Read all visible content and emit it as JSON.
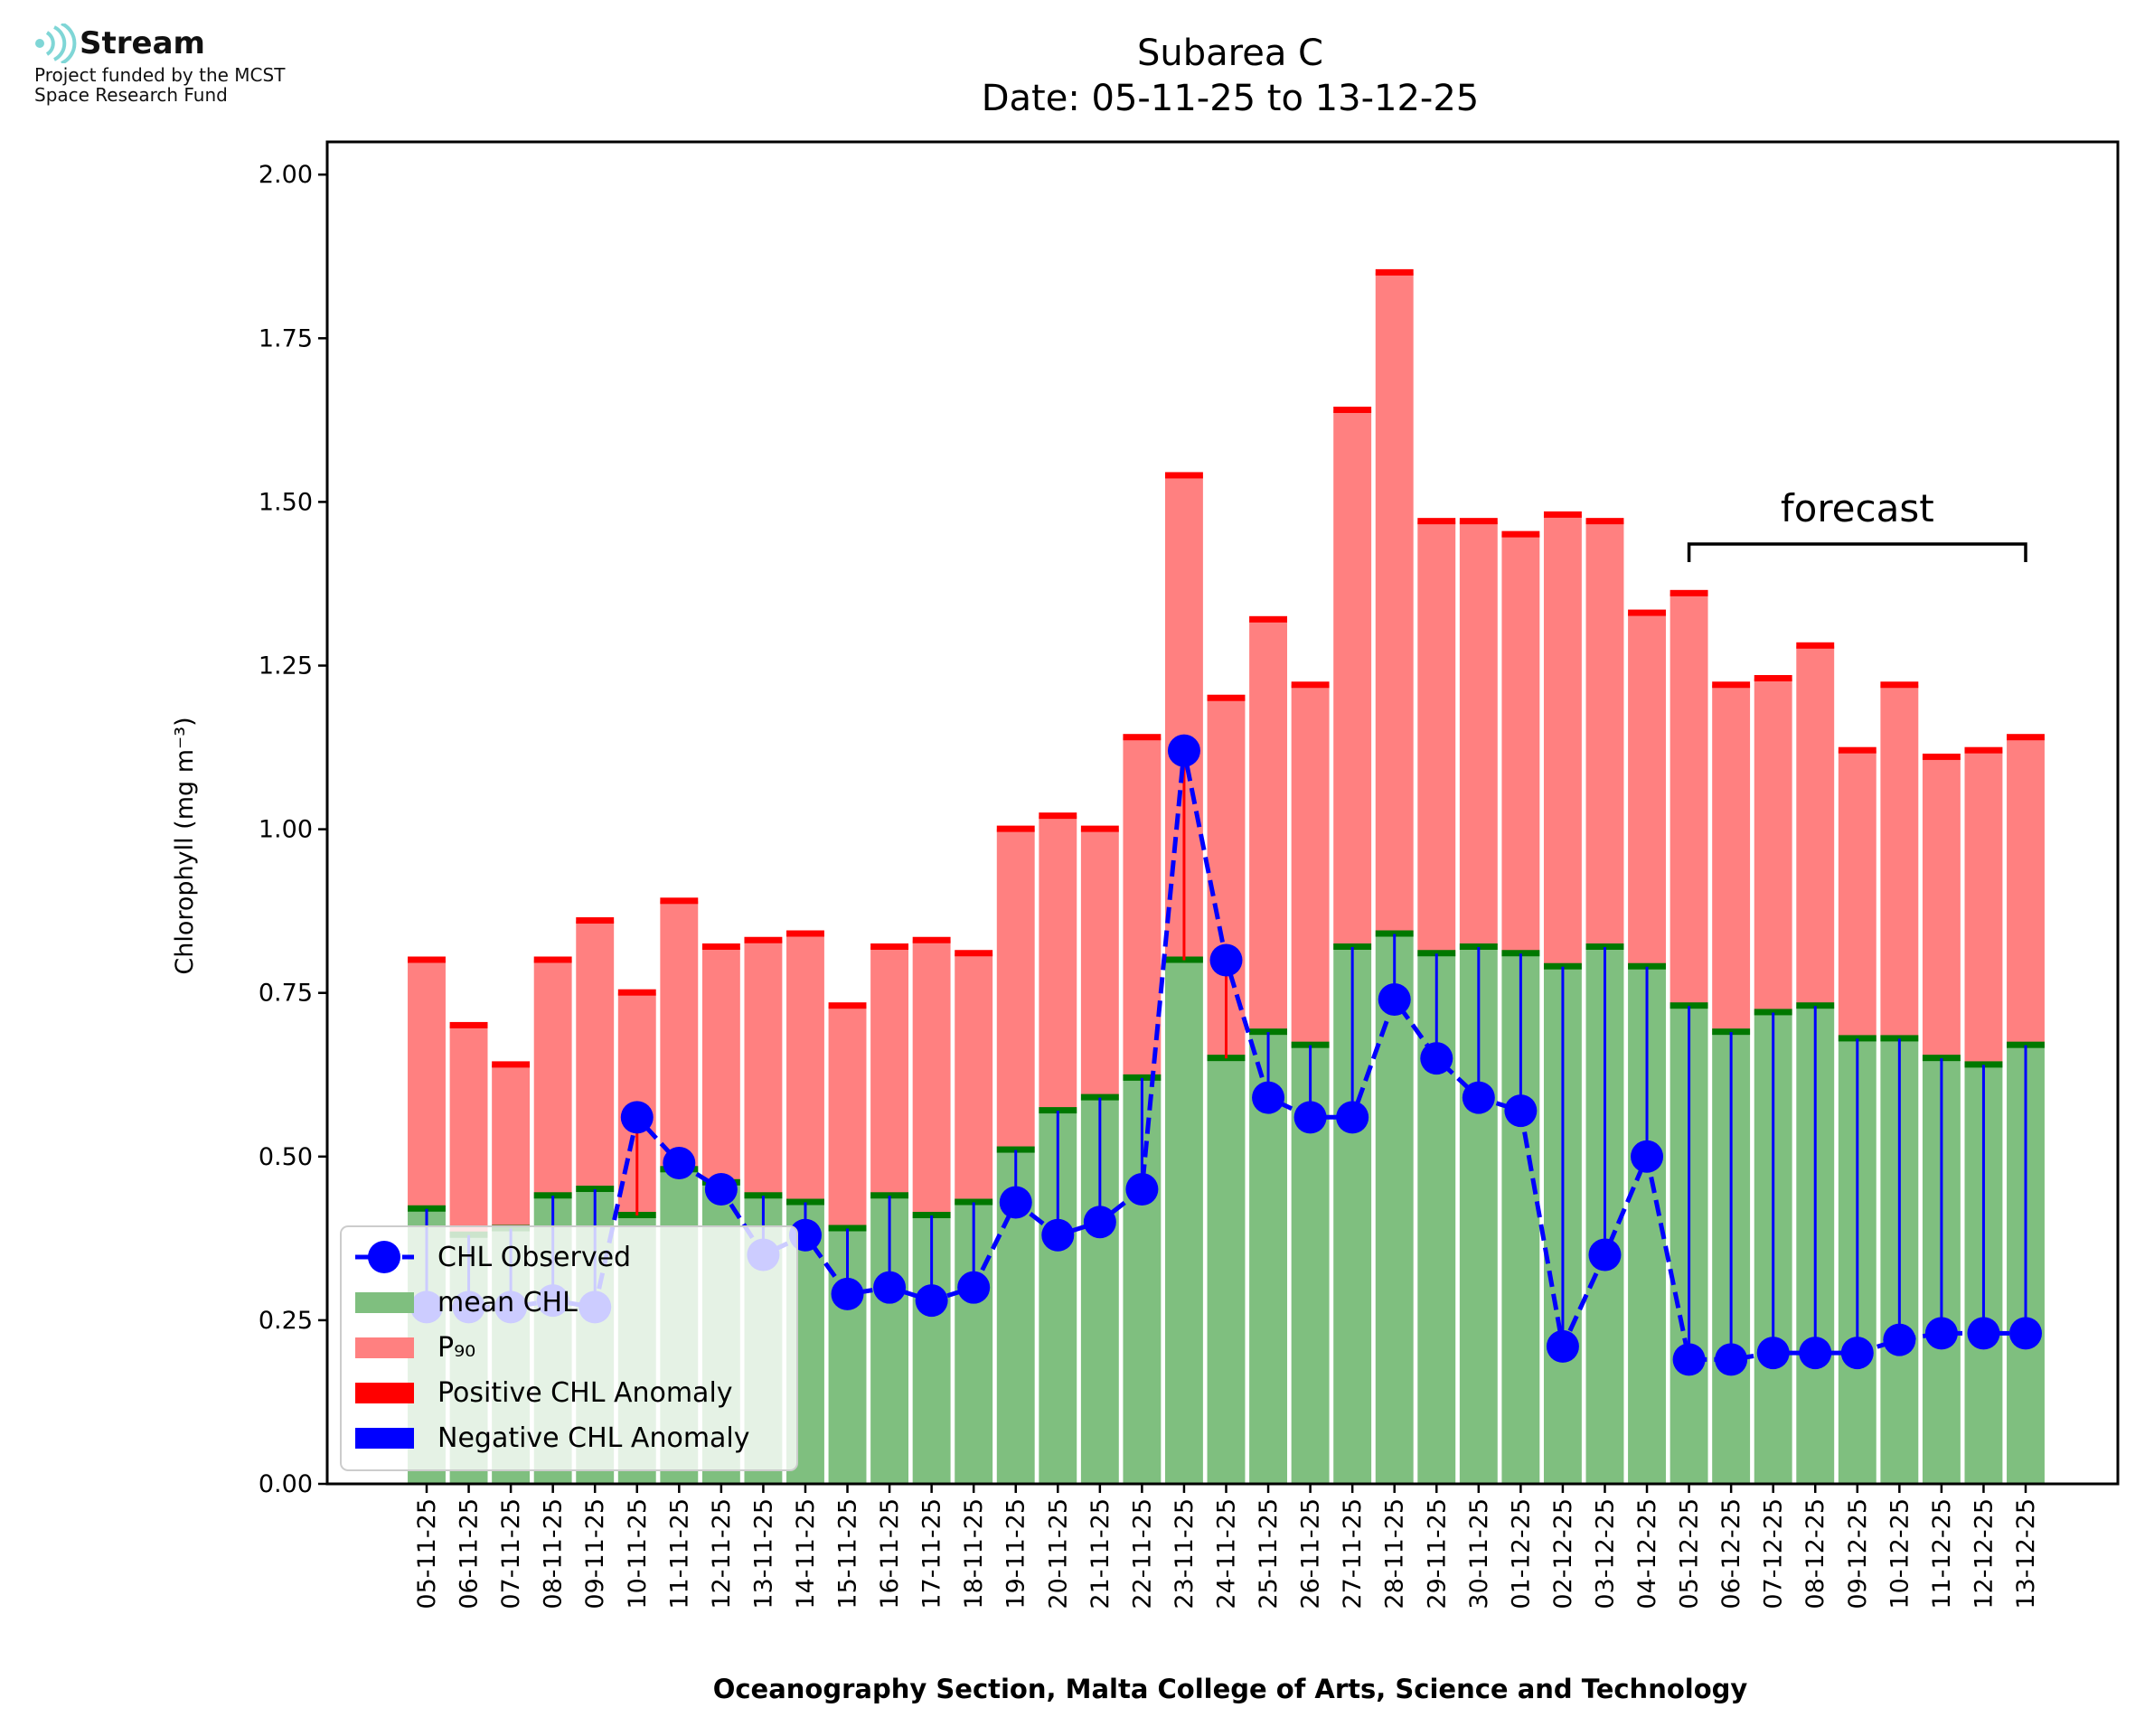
{
  "logo": {
    "name": "Stream",
    "line1": "Project funded by the MCST",
    "line2": "Space Research Fund"
  },
  "chart_data": {
    "type": "bar",
    "title": "Subarea C",
    "subtitle": "Date: 05-11-25 to 13-12-25",
    "xlabel": "Oceanography Section, Malta College of Arts, Science and Technology",
    "ylabel": "Chlorophyll (mg m⁻³)",
    "ylim": [
      0,
      2.05
    ],
    "yticks": [
      0.0,
      0.25,
      0.5,
      0.75,
      1.0,
      1.25,
      1.5,
      1.75,
      2.0
    ],
    "categories": [
      "05-11-25",
      "06-11-25",
      "07-11-25",
      "08-11-25",
      "09-11-25",
      "10-11-25",
      "11-11-25",
      "12-11-25",
      "13-11-25",
      "14-11-25",
      "15-11-25",
      "16-11-25",
      "17-11-25",
      "18-11-25",
      "19-11-25",
      "20-11-25",
      "21-11-25",
      "22-11-25",
      "23-11-25",
      "24-11-25",
      "25-11-25",
      "26-11-25",
      "27-11-25",
      "28-11-25",
      "29-11-25",
      "30-11-25",
      "01-12-25",
      "02-12-25",
      "03-12-25",
      "04-12-25",
      "05-12-25",
      "06-12-25",
      "07-12-25",
      "08-12-25",
      "09-12-25",
      "10-12-25",
      "11-12-25",
      "12-12-25",
      "13-12-25"
    ],
    "series": [
      {
        "name": "mean CHL",
        "color": "#7fbf7f",
        "values": [
          0.42,
          0.38,
          0.39,
          0.44,
          0.45,
          0.41,
          0.48,
          0.46,
          0.44,
          0.43,
          0.39,
          0.44,
          0.41,
          0.43,
          0.51,
          0.57,
          0.59,
          0.62,
          0.8,
          0.65,
          0.69,
          0.67,
          0.82,
          0.84,
          0.81,
          0.82,
          0.81,
          0.79,
          0.82,
          0.79,
          0.73,
          0.69,
          0.72,
          0.73,
          0.68,
          0.68,
          0.65,
          0.64,
          0.67
        ]
      },
      {
        "name": "P₉₀",
        "color": "#ff8080",
        "values": [
          0.8,
          0.7,
          0.64,
          0.8,
          0.86,
          0.75,
          0.89,
          0.82,
          0.83,
          0.84,
          0.73,
          0.82,
          0.83,
          0.81,
          1.0,
          1.02,
          1.0,
          1.14,
          1.54,
          1.2,
          1.32,
          1.22,
          1.64,
          1.85,
          1.47,
          1.47,
          1.45,
          1.48,
          1.47,
          1.33,
          1.36,
          1.22,
          1.23,
          1.28,
          1.12,
          1.22,
          1.11,
          1.12,
          1.14
        ]
      },
      {
        "name": "CHL Observed",
        "color": "#0000ff",
        "values": [
          0.27,
          0.27,
          0.27,
          0.28,
          0.27,
          0.56,
          0.49,
          0.45,
          0.35,
          0.38,
          0.29,
          0.3,
          0.28,
          0.3,
          0.43,
          0.38,
          0.4,
          0.45,
          1.12,
          0.8,
          0.59,
          0.56,
          0.56,
          0.74,
          0.65,
          0.59,
          0.57,
          0.21,
          0.35,
          0.5,
          0.19,
          0.19,
          0.2,
          0.2,
          0.2,
          0.22,
          0.23,
          0.23,
          0.23
        ]
      }
    ],
    "anomaly_colors": {
      "positive": "#ff0000",
      "negative": "#0000ff"
    },
    "forecast": {
      "label": "forecast",
      "from_index": 30,
      "to_index": 38
    },
    "legend": {
      "position": "lower-left",
      "items": [
        "CHL Observed",
        "mean CHL",
        "P₉₀",
        "Positive CHL Anomaly",
        "Negative CHL Anomaly"
      ]
    },
    "grid": false
  }
}
